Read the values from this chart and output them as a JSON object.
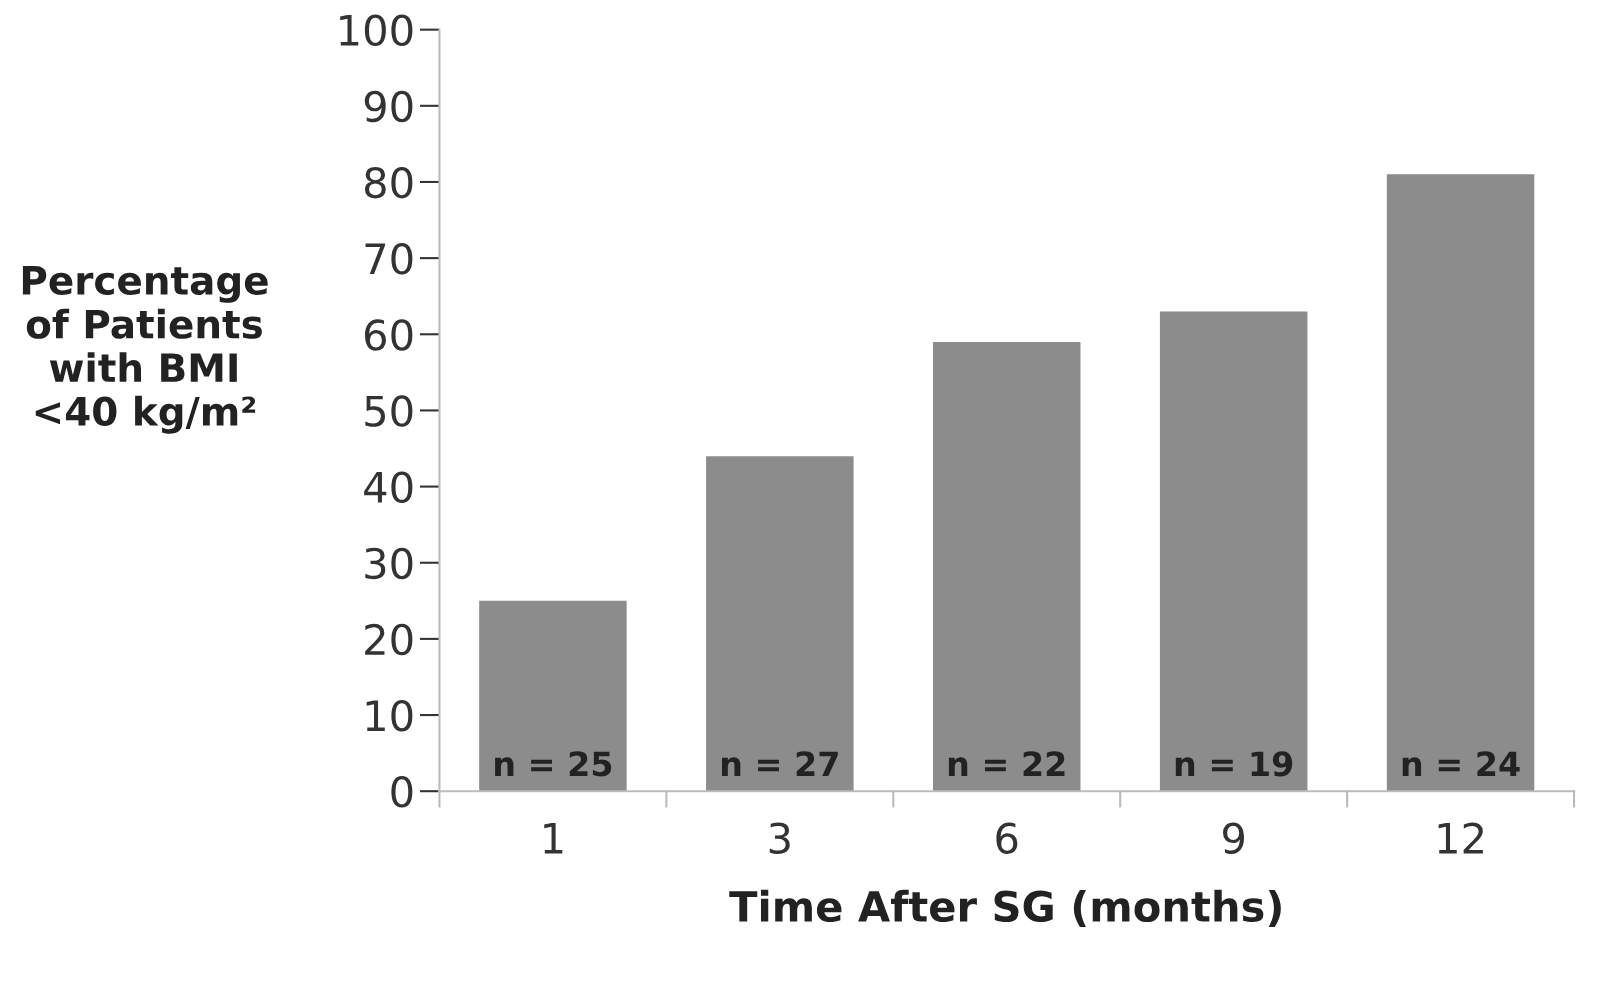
{
  "chart_data": {
    "type": "bar",
    "xlabel": "Time After SG (months)",
    "ylabel": "Percentage\nof Patients\nwith BMI\n<40 kg/m²",
    "categories": [
      "1",
      "3",
      "6",
      "9",
      "12"
    ],
    "values": [
      25,
      44,
      59,
      63,
      81
    ],
    "color": "#8c8c8c",
    "annotations": [
      {
        "text": "n = 25",
        "x": "1",
        "y": 0
      },
      {
        "text": "n = 27",
        "x": "3",
        "y": 0
      },
      {
        "text": "n = 22",
        "x": "6",
        "y": 0
      },
      {
        "text": "n = 19",
        "x": "9",
        "y": 0
      },
      {
        "text": "n = 24",
        "x": "12",
        "y": 0
      }
    ],
    "ylim": [
      0,
      100
    ],
    "yticks": [
      0,
      10,
      20,
      30,
      40,
      50,
      60,
      70,
      80,
      90,
      100
    ],
    "grid": false
  }
}
